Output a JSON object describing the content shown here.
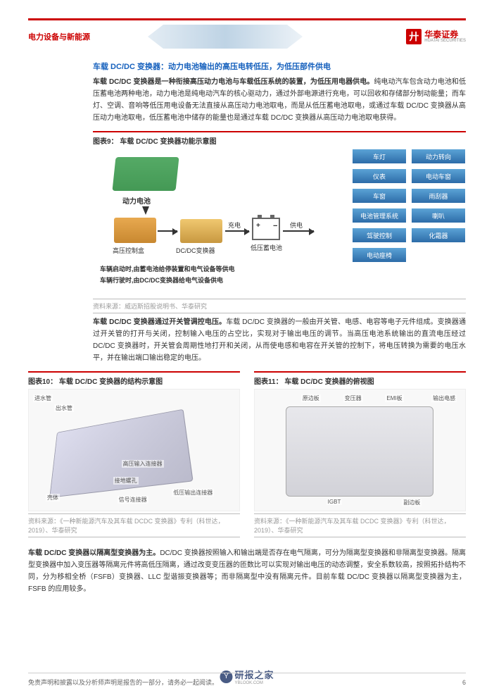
{
  "header": {
    "category": "电力设备与新能源",
    "logo_cn": "华泰证券",
    "logo_en": "HUATAI SECURITIES",
    "logo_glyph": "廾"
  },
  "section1": {
    "title": "车载 DC/DC 变换器：动力电池输出的高压电转低压，为低压部件供电",
    "lead": "车载 DC/DC 变换器是一种衔接高压动力电池与车载低压系统的装置，为低压用电器供电。",
    "body": "纯电动汽车包含动力电池和低压蓄电池两种电池，动力电池是纯电动汽车的核心驱动力，通过外部电源进行充电，可以回收和存储部分制动能量；而车灯、空调、音响等低压用电设备无法直接从高压动力电池取电，而是从低压蓄电池取电，或通过车载 DC/DC 变换器从高压动力电池取电，低压蓄电池中储存的能量也是通过车载 DC/DC 变换器从高压动力电池取电获得。"
  },
  "fig9": {
    "title": "图表9：  车载 DC/DC 变换器功能示意图",
    "battery_label": "动力电池",
    "ctrl_label": "高压控制盒",
    "dcdc_label": "DC/DC变换器",
    "charge_label": "充电",
    "supply_label": "供电",
    "lv_batt_label": "低压蓄电池",
    "caption1": "车辆启动时,由蓄电池给停装置和电气设备等供电",
    "caption2": "车辆行驶时,由DC/DC变换器给电气设备供电",
    "grid": [
      "车灯",
      "动力转向",
      "仪表",
      "电动车窗",
      "车窗",
      "雨刮器",
      "电池管理系统",
      "喇叭",
      "驾驶控制",
      "化霜器",
      "电动座椅",
      ""
    ],
    "grid_colors": {
      "fill": "#3f88c5",
      "text": "#ffffff"
    },
    "source": "资料来源：威迈斯招股说明书、华泰研究"
  },
  "section2": {
    "lead": "车载 DC/DC 变换器通过开关管调控电压。",
    "body": "车载 DC/DC 变换器的一般由开关管、电感、电容等电子元件组成。变换器通过开关管的打开与关闭，控制输入电压的占空比，实现对于输出电压的调节。当高压电池系统输出的直流电压经过 DC/DC 变换器时，开关管会周期性地打开和关闭，从而使电感和电容在开关管的控制下，将电压转换为需要的电压水平，并在输出端口输出稳定的电压。"
  },
  "fig10": {
    "title": "图表10：  车载 DC/DC 变换器的结构示意图",
    "labels": [
      "进水管",
      "出水管",
      "高压输入连接器",
      "接地螺孔",
      "壳体",
      "信号连接器",
      "低压输出连接器"
    ],
    "positions": [
      {
        "l": "2%",
        "t": "4%"
      },
      {
        "l": "12%",
        "t": "12%"
      },
      {
        "l": "44%",
        "t": "58%"
      },
      {
        "l": "40%",
        "t": "72%"
      },
      {
        "l": "8%",
        "t": "86%"
      },
      {
        "l": "42%",
        "t": "88%"
      },
      {
        "l": "68%",
        "t": "82%"
      }
    ],
    "source": "资料来源：《一种新能源汽车及其车载 DCDC 变换器》专利（科世达，2019）、华泰研究"
  },
  "fig11": {
    "title": "图表11：  车载 DC/DC 变换器的俯视图",
    "labels": [
      "原边板",
      "变压器",
      "EMI板",
      "输出电感",
      "IGBT",
      "副边板"
    ],
    "positions": [
      {
        "l": "22%",
        "t": "4%"
      },
      {
        "l": "42%",
        "t": "4%"
      },
      {
        "l": "62%",
        "t": "4%"
      },
      {
        "l": "84%",
        "t": "4%"
      },
      {
        "l": "34%",
        "t": "90%"
      },
      {
        "l": "70%",
        "t": "90%"
      }
    ],
    "source": "资料来源：《一种新能源汽车及其车载 DCDC 变换器》专利（科世达，2019）、华泰研究"
  },
  "section3": {
    "lead": "车载 DC/DC 变换器以隔离型变换器为主。",
    "body": "DC/DC 变换器按照输入和输出端是否存在电气隔离，可分为隔离型变换器和非隔离型变换器。隔离型变换器中加入变压器等隔离元件将高低压隔离，通过改变变压器的匝数比可以实现对输出电压的动态调整，安全系数较高，按照拓扑结构不同，分为移相全桥（FSFB）变换器、LLC 型谐振变换器等；而非隔离型中没有隔离元件。目前车载 DC/DC 变换器以隔离型变换器为主，FSFB 的应用较多。"
  },
  "footer": {
    "disclaimer": "免责声明和披露以及分析师声明是报告的一部分，请务必一起阅读。",
    "page": "6"
  },
  "watermark": {
    "text": "研报之家",
    "sub": "YBLOOK.COM",
    "glyph": "Y"
  },
  "colors": {
    "brand": "#c00000",
    "link": "#1560bd",
    "grid_cell": "#3f88c5"
  }
}
